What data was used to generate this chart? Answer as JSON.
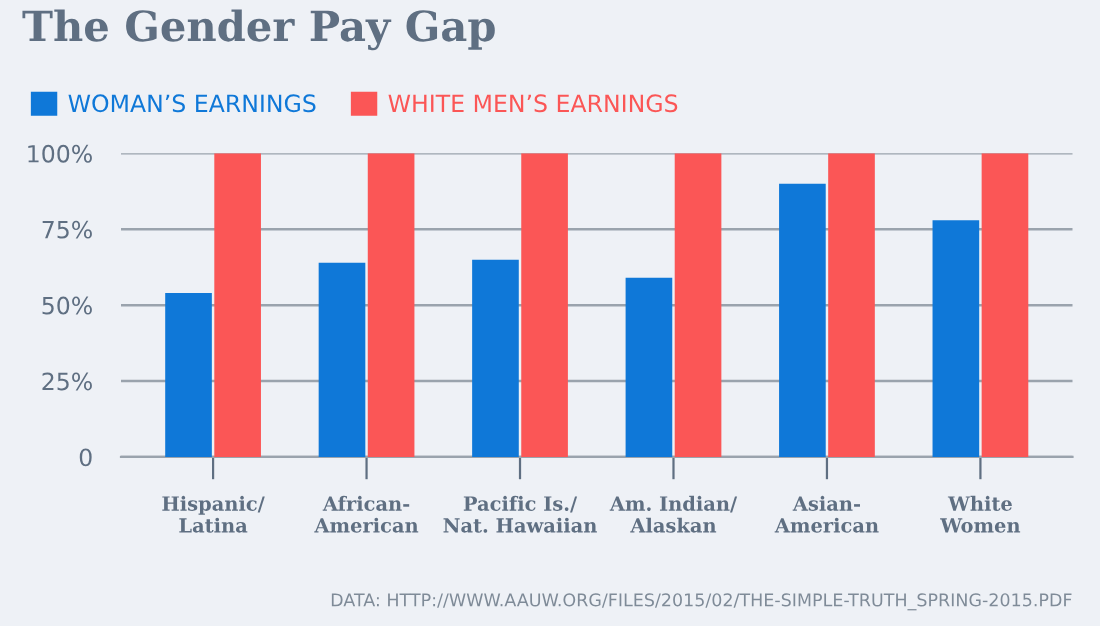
{
  "chart_data": {
    "type": "bar",
    "title": "The Gender Pay Gap",
    "categories": [
      "Hispanic/\nLatina",
      "African-\nAmerican",
      "Pacific Is./\nNat. Hawaiian",
      "Am. Indian/\nAlaskan",
      "Asian-\nAmerican",
      "White\nWomen"
    ],
    "series": [
      {
        "name": "WOMAN’S EARNINGS",
        "color": "#0f78d8",
        "values": [
          54,
          64,
          65,
          59,
          90,
          78
        ]
      },
      {
        "name": "WHITE MEN’S EARNINGS",
        "color": "#fb5656",
        "values": [
          100,
          100,
          100,
          100,
          100,
          100
        ]
      }
    ],
    "ylim": [
      0,
      100
    ],
    "yticks": [
      0,
      {
        "value": 25,
        "label": "25%"
      },
      {
        "value": 50,
        "label": "50%"
      },
      {
        "value": 75,
        "label": "75%"
      },
      {
        "value": 100,
        "label": "100%"
      }
    ],
    "grid": "y",
    "legend": "top left",
    "annotations": [
      "DATA: HTTP://WWW.AAUW.ORG/FILES/2015/02/THE-SIMPLE-TRUTH_SPRING-2015.PDF"
    ]
  }
}
